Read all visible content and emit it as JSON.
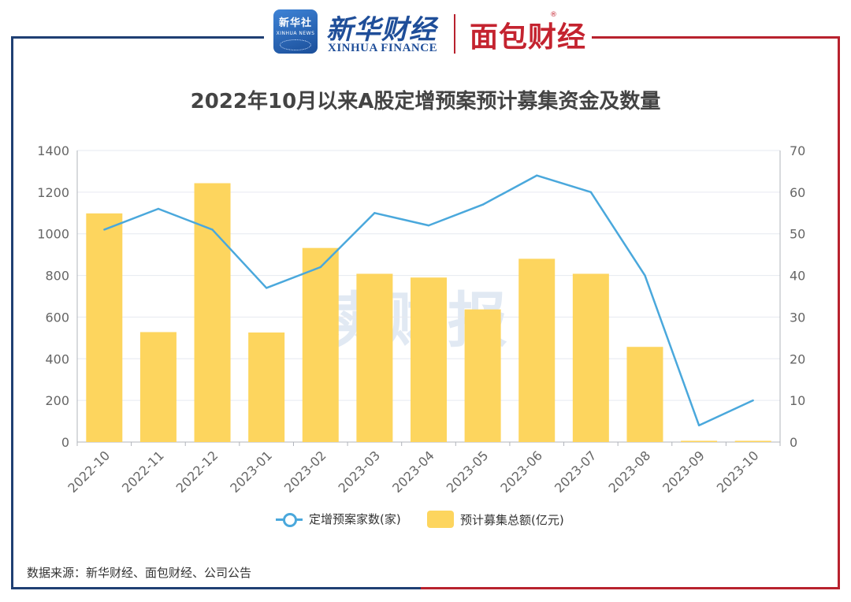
{
  "header": {
    "xinhua_badge_cn": "新华社",
    "xinhua_badge_en": "XINHUA NEWS",
    "xinhua_name_cn": "新华财经",
    "xinhua_name_en": "XINHUA FINANCE",
    "partner_name": "面包财经",
    "partner_mark": "®"
  },
  "watermark": "读财报",
  "source_text": "数据来源：新华财经、面包财经、公司公告",
  "colors": {
    "bar": "#fdd55e",
    "line": "#4aa8dc",
    "grid": "#e6e9f0",
    "axis_text": "#666666"
  },
  "chart_data": {
    "type": "bar",
    "title": "2022年10月以来A股定增预案预计募集资金及数量",
    "categories": [
      "2022-10",
      "2022-11",
      "2022-12",
      "2023-01",
      "2023-02",
      "2023-03",
      "2023-04",
      "2023-05",
      "2023-06",
      "2023-07",
      "2023-08",
      "2023-09",
      "2023-10"
    ],
    "series": [
      {
        "name": "预计募集总额(亿元)",
        "type": "bar",
        "axis": "left",
        "values": [
          1098,
          528,
          1243,
          526,
          932,
          808,
          790,
          637,
          880,
          808,
          457,
          6,
          6
        ]
      },
      {
        "name": "定增预案家数(家)",
        "type": "line",
        "axis": "right",
        "values": [
          51,
          56,
          51,
          37,
          42,
          55,
          52,
          57,
          64,
          60,
          40,
          4,
          10
        ]
      }
    ],
    "y_left": {
      "lim": [
        0,
        1400
      ],
      "ticks": [
        "0",
        "200",
        "400",
        "600",
        "800",
        "1000",
        "1200",
        "1400"
      ]
    },
    "y_right": {
      "lim": [
        0,
        70
      ],
      "ticks": [
        "0",
        "10",
        "20",
        "30",
        "40",
        "50",
        "60",
        "70"
      ]
    },
    "grid": true,
    "legend_position": "bottom-center"
  }
}
